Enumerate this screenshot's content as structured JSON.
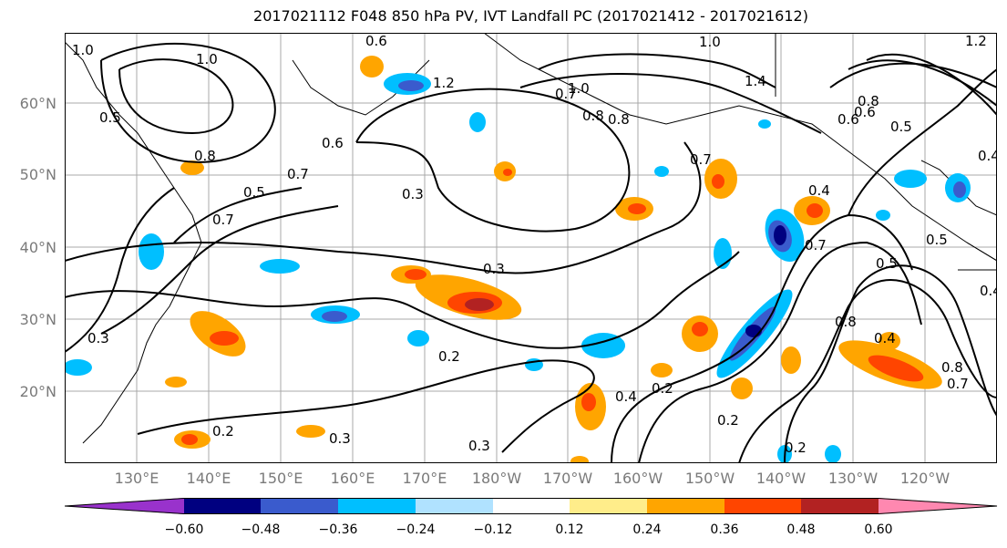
{
  "title": "2017021112 F048 850 hPa PV, IVT Landfall PC (2017021412 - 2017021612)",
  "lat_labels": [
    "60°N",
    "50°N",
    "40°N",
    "30°N",
    "20°N"
  ],
  "lon_labels": [
    "130°E",
    "140°E",
    "150°E",
    "160°E",
    "170°E",
    "180°W",
    "170°W",
    "160°W",
    "150°W",
    "140°W",
    "130°W",
    "120°W"
  ],
  "contour_labels": [
    "1.0",
    "1.0",
    "0.6",
    "1.0",
    "1.0",
    "1.4",
    "0.5",
    "1.2",
    "0.7",
    "0.8",
    "0.8",
    "0.8",
    "0.5",
    "0.5",
    "0.7",
    "0.6",
    "0.6",
    "0.6",
    "0.3",
    "0.3",
    "0.3",
    "0.7",
    "0.4",
    "0.7",
    "0.5",
    "0.5",
    "0.7",
    "0.2",
    "0.4",
    "0.3",
    "0.2",
    "0.2",
    "0.2",
    "0.3",
    "0.2",
    "0.8",
    "0.4",
    "0.4",
    "0.8",
    "0.7",
    "0.4",
    "0.8",
    "1.2"
  ],
  "colorbar": {
    "colors": [
      "#9932cc",
      "#000080",
      "#3a5bcd",
      "#00bfff",
      "#b0e2ff",
      "#ffffff",
      "#ffed8a",
      "#ffa500",
      "#ff4500",
      "#b22222",
      "#ff88b0"
    ],
    "ticks": [
      "−0.60",
      "−0.48",
      "−0.36",
      "−0.24",
      "−0.12",
      "0.12",
      "0.24",
      "0.36",
      "0.48",
      "0.60"
    ]
  },
  "legend_values": [
    -0.6,
    -0.48,
    -0.36,
    -0.24,
    -0.12,
    0.12,
    0.24,
    0.36,
    0.48,
    0.6
  ]
}
